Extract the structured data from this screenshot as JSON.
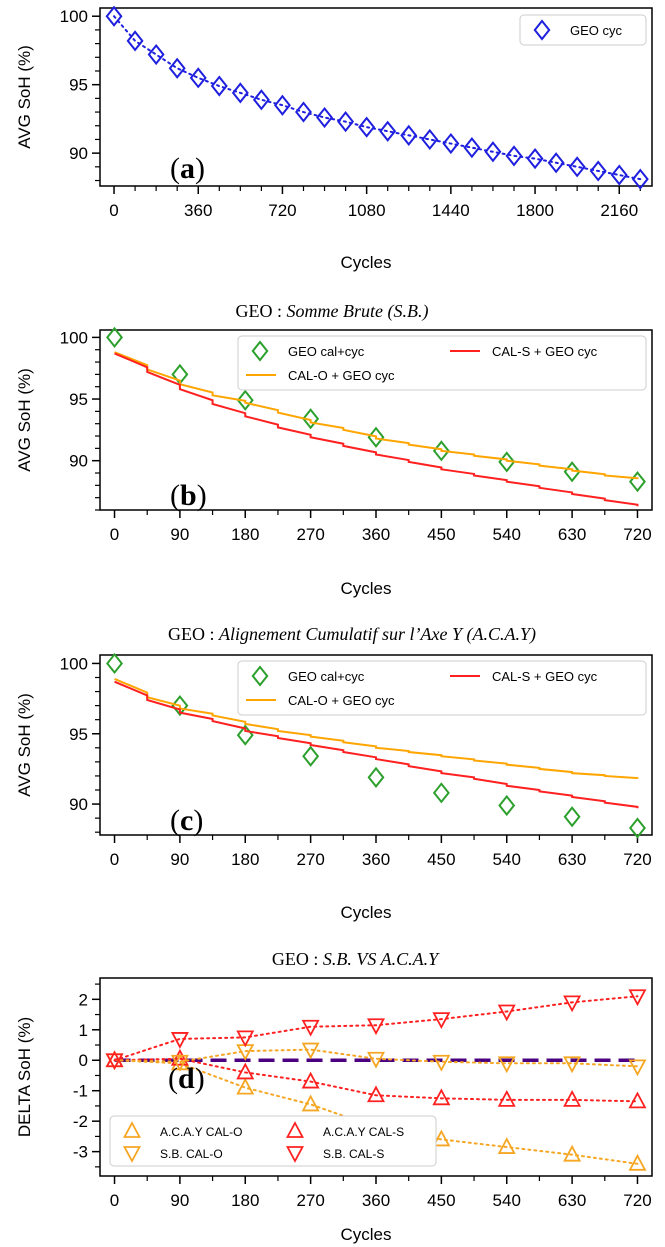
{
  "titles": {
    "b": {
      "prefix": "GEO : ",
      "italic": "Somme Brute (S.B.)"
    },
    "c": {
      "prefix": "GEO : ",
      "italic": "Alignement Cumulatif sur l’Axe Y (A.C.A.Y)"
    },
    "d": {
      "prefix": "GEO : ",
      "italic": "S.B. VS A.C.A.Y"
    }
  },
  "chart_data": [
    {
      "id": "a",
      "type": "line",
      "panel_label": "a",
      "xlabel": "Cycles",
      "ylabel": "AVG SoH (%)",
      "xlim": [
        -60,
        2300
      ],
      "ylim": [
        87.6,
        100.6
      ],
      "xticks": [
        0,
        360,
        720,
        1080,
        1440,
        1800,
        2160
      ],
      "xticks_minor": [
        90,
        180,
        270,
        450,
        540,
        630,
        810,
        900,
        990,
        1170,
        1260,
        1350,
        1530,
        1620,
        1710,
        1890,
        1980,
        2070,
        2250
      ],
      "yticks": [
        90,
        95,
        100
      ],
      "legend": "top-right",
      "series": [
        {
          "name": "GEO cyc",
          "marker": "diamond",
          "color": "#1f1fdf",
          "line": "dotted",
          "x": [
            0,
            90,
            180,
            270,
            360,
            450,
            540,
            630,
            720,
            810,
            900,
            990,
            1080,
            1170,
            1260,
            1350,
            1440,
            1530,
            1620,
            1710,
            1800,
            1890,
            1980,
            2070,
            2160,
            2250
          ],
          "values": [
            100,
            98.2,
            97.2,
            96.2,
            95.5,
            94.9,
            94.4,
            93.9,
            93.5,
            93.0,
            92.6,
            92.3,
            91.9,
            91.6,
            91.3,
            91.0,
            90.7,
            90.4,
            90.1,
            89.8,
            89.6,
            89.3,
            89.0,
            88.7,
            88.4,
            88.1
          ]
        }
      ]
    },
    {
      "id": "b",
      "type": "line",
      "panel_label": "b",
      "xlabel": "Cycles",
      "ylabel": "AVG SoH (%)",
      "xlim": [
        -20,
        740
      ],
      "ylim": [
        86.0,
        100.6
      ],
      "xticks": [
        0,
        90,
        180,
        270,
        360,
        450,
        540,
        630,
        720
      ],
      "xticks_minor": [
        45,
        135,
        225,
        315,
        405,
        495,
        585,
        675
      ],
      "yticks": [
        90,
        95,
        100
      ],
      "legend": "top-right",
      "series": [
        {
          "name": "GEO cal+cyc",
          "marker": "diamond",
          "color": "#2ca02c",
          "line": "none",
          "x": [
            0,
            90,
            180,
            270,
            360,
            450,
            540,
            630,
            720
          ],
          "values": [
            100.0,
            97.0,
            94.9,
            93.4,
            91.9,
            90.8,
            89.9,
            89.1,
            88.3
          ]
        },
        {
          "name": "CAL-O + GEO cyc",
          "marker": "none",
          "color": "#ffa500",
          "line": "step",
          "x": [
            0,
            45,
            90,
            135,
            180,
            225,
            270,
            315,
            360,
            405,
            450,
            495,
            540,
            585,
            630,
            675,
            720
          ],
          "values": [
            98.8,
            97.4,
            96.2,
            95.3,
            94.7,
            93.9,
            93.1,
            92.5,
            91.8,
            91.3,
            90.8,
            90.4,
            90.0,
            89.6,
            89.2,
            88.8,
            88.5
          ]
        },
        {
          "name": "CAL-S + GEO cyc",
          "marker": "none",
          "color": "#ff2020",
          "line": "step",
          "x": [
            0,
            45,
            90,
            135,
            180,
            225,
            270,
            315,
            360,
            405,
            450,
            495,
            540,
            585,
            630,
            675,
            720
          ],
          "values": [
            98.7,
            97.2,
            95.8,
            94.6,
            93.6,
            92.7,
            91.9,
            91.2,
            90.5,
            89.9,
            89.3,
            88.8,
            88.3,
            87.8,
            87.3,
            86.8,
            86.3
          ]
        }
      ]
    },
    {
      "id": "c",
      "type": "line",
      "panel_label": "c",
      "xlabel": "Cycles",
      "ylabel": "AVG SoH (%)",
      "xlim": [
        -20,
        740
      ],
      "ylim": [
        87.8,
        100.6
      ],
      "xticks": [
        0,
        90,
        180,
        270,
        360,
        450,
        540,
        630,
        720
      ],
      "xticks_minor": [
        45,
        135,
        225,
        315,
        405,
        495,
        585,
        675
      ],
      "yticks": [
        90,
        95,
        100
      ],
      "legend": "top-right",
      "series": [
        {
          "name": "GEO cal+cyc",
          "marker": "diamond",
          "color": "#2ca02c",
          "line": "none",
          "x": [
            0,
            90,
            180,
            270,
            360,
            450,
            540,
            630,
            720
          ],
          "values": [
            100.0,
            97.0,
            94.9,
            93.4,
            91.9,
            90.8,
            89.9,
            89.1,
            88.3
          ]
        },
        {
          "name": "CAL-O + GEO cyc",
          "marker": "none",
          "color": "#ffa500",
          "line": "step",
          "x": [
            0,
            45,
            90,
            135,
            180,
            225,
            270,
            315,
            360,
            405,
            450,
            495,
            540,
            585,
            630,
            675,
            720
          ],
          "values": [
            98.9,
            97.6,
            96.8,
            96.3,
            95.7,
            95.2,
            94.8,
            94.4,
            94.0,
            93.7,
            93.4,
            93.1,
            92.8,
            92.5,
            92.2,
            92.0,
            91.8
          ]
        },
        {
          "name": "CAL-S + GEO cyc",
          "marker": "none",
          "color": "#ff2020",
          "line": "step",
          "x": [
            0,
            45,
            90,
            135,
            180,
            225,
            270,
            315,
            360,
            405,
            450,
            495,
            540,
            585,
            630,
            675,
            720
          ],
          "values": [
            98.7,
            97.4,
            96.5,
            95.9,
            95.2,
            94.7,
            94.2,
            93.7,
            93.2,
            92.7,
            92.2,
            91.8,
            91.3,
            90.9,
            90.5,
            90.1,
            89.7
          ]
        }
      ]
    },
    {
      "id": "d",
      "type": "line",
      "panel_label": "d",
      "xlabel": "Cycles",
      "ylabel": "DELTA SoH (%)",
      "xlim": [
        -20,
        740
      ],
      "ylim": [
        -3.8,
        2.7
      ],
      "xticks": [
        0,
        90,
        180,
        270,
        360,
        450,
        540,
        630,
        720
      ],
      "xticks_minor": [
        45,
        135,
        225,
        315,
        405,
        495,
        585,
        675
      ],
      "yticks": [
        -3,
        -2,
        -1,
        0,
        1,
        2
      ],
      "legend": "lower-left",
      "zero_line": {
        "value": 0,
        "color": "#4b0082",
        "style": "dashed"
      },
      "series": [
        {
          "name": "A.C.A.Y CAL-O",
          "marker": "triangle-up",
          "color": "#f5a623",
          "line": "dotted",
          "x": [
            0,
            90,
            180,
            270,
            360,
            450,
            540,
            630,
            720
          ],
          "values": [
            0.0,
            -0.1,
            -0.9,
            -1.45,
            -2.2,
            -2.6,
            -2.85,
            -3.1,
            -3.4
          ]
        },
        {
          "name": "A.C.A.Y CAL-S",
          "marker": "triangle-up",
          "color": "#ff2020",
          "line": "dotted",
          "x": [
            0,
            90,
            180,
            270,
            360,
            450,
            540,
            630,
            720
          ],
          "values": [
            0.0,
            0.05,
            -0.4,
            -0.7,
            -1.15,
            -1.25,
            -1.3,
            -1.3,
            -1.35
          ]
        },
        {
          "name": "S.B. CAL-O",
          "marker": "triangle-down",
          "color": "#f5a623",
          "line": "dotted",
          "x": [
            0,
            90,
            180,
            270,
            360,
            450,
            540,
            630,
            720
          ],
          "values": [
            0.0,
            -0.05,
            0.3,
            0.35,
            0.05,
            -0.05,
            -0.1,
            -0.1,
            -0.2
          ]
        },
        {
          "name": "S.B. CAL-S",
          "marker": "triangle-down",
          "color": "#ff2020",
          "line": "dotted",
          "x": [
            0,
            90,
            180,
            270,
            360,
            450,
            540,
            630,
            720
          ],
          "values": [
            0.0,
            0.7,
            0.75,
            1.1,
            1.15,
            1.35,
            1.6,
            1.9,
            2.1
          ]
        }
      ]
    }
  ]
}
